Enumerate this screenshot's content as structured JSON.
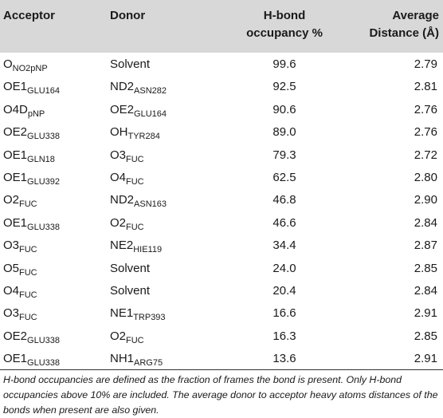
{
  "table": {
    "headers": {
      "acceptor": "Acceptor",
      "donor": "Donor",
      "occupancy_line1": "H-bond",
      "occupancy_line2": "occupancy %",
      "distance_line1": "Average",
      "distance_line2": "Distance (Å)"
    },
    "rows": [
      {
        "acc_main": "O",
        "acc_sub": "NO2pNP",
        "don_main": "Solvent",
        "don_sub": "",
        "occupancy": "99.6",
        "distance": "2.79"
      },
      {
        "acc_main": "OE1",
        "acc_sub": "GLU164",
        "don_main": "ND2",
        "don_sub": "ASN282",
        "occupancy": "92.5",
        "distance": "2.81"
      },
      {
        "acc_main": "O4D",
        "acc_sub": "pNP",
        "don_main": "OE2",
        "don_sub": "GLU164",
        "occupancy": "90.6",
        "distance": "2.76"
      },
      {
        "acc_main": "OE2",
        "acc_sub": "GLU338",
        "don_main": "OH",
        "don_sub": "TYR284",
        "occupancy": "89.0",
        "distance": "2.76"
      },
      {
        "acc_main": "OE1",
        "acc_sub": "GLN18",
        "don_main": "O3",
        "don_sub": "FUC",
        "occupancy": "79.3",
        "distance": "2.72"
      },
      {
        "acc_main": "OE1",
        "acc_sub": "GLU392",
        "don_main": "O4",
        "don_sub": "FUC",
        "occupancy": "62.5",
        "distance": "2.80"
      },
      {
        "acc_main": "O2",
        "acc_sub": "FUC",
        "don_main": "ND2",
        "don_sub": "ASN163",
        "occupancy": "46.8",
        "distance": "2.90"
      },
      {
        "acc_main": "OE1",
        "acc_sub": "GLU338",
        "don_main": "O2",
        "don_sub": "FUC",
        "occupancy": "46.6",
        "distance": "2.84"
      },
      {
        "acc_main": "O3",
        "acc_sub": "FUC",
        "don_main": "NE2",
        "don_sub": "HIE119",
        "occupancy": "34.4",
        "distance": "2.87"
      },
      {
        "acc_main": "O5",
        "acc_sub": "FUC",
        "don_main": "Solvent",
        "don_sub": "",
        "occupancy": "24.0",
        "distance": "2.85"
      },
      {
        "acc_main": "O4",
        "acc_sub": "FUC",
        "don_main": "Solvent",
        "don_sub": "",
        "occupancy": "20.4",
        "distance": "2.84"
      },
      {
        "acc_main": "O3",
        "acc_sub": "FUC",
        "don_main": "NE1",
        "don_sub": "TRP393",
        "occupancy": "16.6",
        "distance": "2.91"
      },
      {
        "acc_main": "OE2",
        "acc_sub": "GLU338",
        "don_main": "O2",
        "don_sub": "FUC",
        "occupancy": "16.3",
        "distance": "2.85"
      },
      {
        "acc_main": "OE1",
        "acc_sub": "GLU338",
        "don_main": "NH1",
        "don_sub": "ARG75",
        "occupancy": "13.6",
        "distance": "2.91"
      }
    ],
    "footnote": "H-bond occupancies are defined as the fraction of frames the bond is present. Only H-bond occupancies above 10% are included. The average donor to acceptor heavy atoms distances of the bonds when present are also given."
  },
  "colors": {
    "header_background": "#d8d8d8",
    "text": "#1a1a1a",
    "rule": "#333333"
  }
}
